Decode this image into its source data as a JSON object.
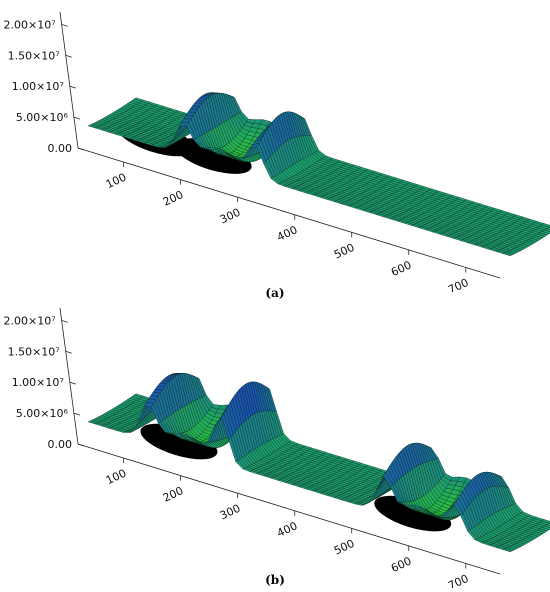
{
  "chart_data": [
    {
      "type": "surface3d",
      "panel": "a",
      "caption": "(a)",
      "x_ticks": [
        100,
        200,
        300,
        400,
        500,
        600,
        700
      ],
      "y_ticks": [
        "0.00",
        "5.00×10⁶",
        "1.00×10⁷",
        "1.50×10⁷",
        "2.00×10⁷"
      ],
      "zlim": [
        0,
        22000000
      ],
      "xlim": [
        20,
        760
      ],
      "features": [
        {
          "center_x": 150,
          "kind": "dark-depression"
        },
        {
          "center_x": 250,
          "kind": "spiked-ridge-with-green-trough",
          "peak": 22000000
        }
      ]
    },
    {
      "type": "surface3d",
      "panel": "b",
      "caption": "(b)",
      "x_ticks": [
        100,
        200,
        300,
        400,
        500,
        600,
        700
      ],
      "y_ticks": [
        "0.00",
        "5.00×10⁶",
        "1.00×10⁷",
        "1.50×10⁷",
        "2.00×10⁷"
      ],
      "zlim": [
        0,
        22000000
      ],
      "xlim": [
        20,
        760
      ],
      "features": [
        {
          "center_x": 190,
          "kind": "spiked-ridge-with-green-trough",
          "peak": 22000000
        },
        {
          "center_x": 600,
          "kind": "spiked-ridge-with-green-trough",
          "peak": 20000000
        }
      ]
    }
  ],
  "colors": {
    "surface_low": "#1a9e6e",
    "surface_mid": "#2aa84a",
    "surface_trough": "#34d22a",
    "surface_high": "#1a2ad8",
    "grid_line": "#0a2a1a",
    "shadow": "#000000"
  }
}
